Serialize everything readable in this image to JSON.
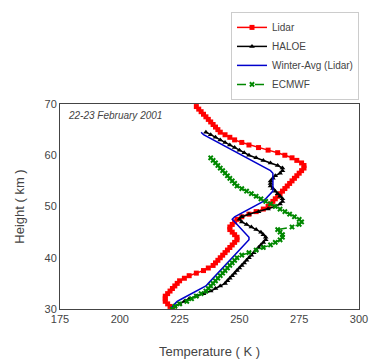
{
  "chart_data": {
    "type": "line",
    "title": "22-23 February 2001",
    "xlabel": "Temperature ( K )",
    "ylabel": "Height ( km )",
    "xlim": [
      175,
      300
    ],
    "ylim": [
      30,
      70
    ],
    "xticks": [
      175,
      200,
      225,
      250,
      275,
      300
    ],
    "yticks": [
      30,
      40,
      50,
      60,
      70
    ],
    "grid": false,
    "legend": "upper right",
    "series": [
      {
        "name": "Lidar",
        "color": "#ff0000",
        "marker": "square",
        "line_style": "solid",
        "x": [
          222,
          221,
          220,
          219,
          219,
          219,
          220,
          221,
          222,
          223,
          224,
          225,
          227,
          229,
          232,
          235,
          237,
          239,
          240,
          241,
          242,
          243,
          244,
          245,
          246,
          247,
          248,
          249,
          249,
          248,
          247,
          246,
          246,
          247,
          248,
          249,
          251,
          254,
          257,
          260,
          262,
          263,
          264,
          265,
          266,
          267,
          268,
          269,
          270,
          271,
          272,
          273,
          274,
          275,
          276,
          277,
          277,
          276,
          274,
          272,
          269,
          266,
          262,
          258,
          254,
          251,
          248,
          246,
          244,
          242,
          241,
          240,
          239,
          238,
          237,
          236,
          235,
          234,
          233,
          232
        ],
        "values": [
          30.0,
          30.5,
          31.0,
          31.5,
          32.0,
          32.5,
          33.0,
          33.5,
          34.0,
          34.5,
          35.0,
          35.5,
          36.0,
          36.5,
          37.0,
          37.5,
          38.0,
          38.5,
          39.0,
          39.5,
          40.0,
          40.5,
          41.0,
          41.5,
          42.0,
          42.5,
          43.0,
          43.5,
          44.0,
          44.5,
          45.0,
          45.5,
          46.0,
          46.5,
          47.0,
          47.5,
          48.0,
          48.5,
          49.0,
          49.5,
          50.0,
          50.5,
          51.0,
          51.5,
          52.0,
          52.5,
          53.0,
          53.5,
          54.0,
          54.5,
          55.0,
          55.5,
          56.0,
          56.5,
          57.0,
          57.5,
          58.0,
          58.5,
          59.0,
          59.5,
          60.0,
          60.5,
          61.0,
          61.5,
          62.0,
          62.5,
          63.0,
          63.5,
          64.0,
          64.5,
          65.0,
          65.5,
          66.0,
          66.5,
          67.0,
          67.5,
          68.0,
          68.5,
          69.0,
          69.5
        ]
      },
      {
        "name": "HALOE",
        "color": "#000000",
        "marker": "triangle-up",
        "line_style": "solid",
        "x": [
          222,
          223,
          225,
          227,
          229,
          232,
          235,
          238,
          240,
          242,
          244,
          245,
          246,
          247,
          248,
          249,
          250,
          251,
          252,
          253,
          254,
          255,
          256,
          257,
          258,
          259,
          260,
          261,
          261,
          260,
          259,
          257,
          255,
          253,
          251,
          250,
          251,
          254,
          258,
          262,
          265,
          267,
          268,
          268,
          267,
          266,
          265,
          264,
          263,
          263,
          263,
          264,
          265,
          267,
          268,
          268,
          266,
          263,
          260,
          257,
          254,
          252,
          250,
          248,
          246,
          244,
          242,
          240,
          238,
          236
        ],
        "values": [
          30.0,
          30.5,
          31.0,
          31.5,
          32.0,
          32.5,
          33.0,
          33.5,
          34.0,
          34.5,
          35.0,
          35.5,
          36.0,
          36.5,
          37.0,
          37.5,
          38.0,
          38.5,
          39.0,
          39.5,
          40.0,
          40.5,
          41.0,
          41.5,
          42.0,
          42.5,
          43.0,
          43.5,
          44.0,
          44.5,
          45.0,
          45.5,
          46.0,
          46.5,
          47.0,
          47.5,
          48.0,
          48.5,
          49.0,
          49.5,
          50.0,
          50.5,
          51.0,
          51.5,
          52.0,
          52.5,
          53.0,
          53.5,
          54.0,
          54.5,
          55.0,
          55.5,
          56.0,
          56.5,
          57.0,
          57.5,
          58.0,
          58.5,
          59.0,
          59.5,
          60.0,
          60.5,
          61.0,
          61.5,
          62.0,
          62.5,
          63.0,
          63.5,
          64.0,
          64.5
        ]
      },
      {
        "name": "Winter-Avg (Lidar)",
        "color": "#0000cc",
        "line_style": "solid",
        "x": [
          222,
          222,
          223,
          224,
          226,
          228,
          230,
          232,
          234,
          236,
          237,
          238,
          239,
          240,
          241,
          242,
          243,
          244,
          245,
          246,
          247,
          248,
          249,
          250,
          251,
          252,
          253,
          254,
          254,
          253,
          252,
          251,
          250,
          249,
          248,
          247,
          248,
          250,
          252,
          254,
          256,
          258,
          260,
          261,
          262,
          263,
          264,
          264,
          264,
          264,
          264,
          264,
          264,
          264,
          263,
          261,
          259,
          257,
          255,
          253,
          251,
          249,
          247,
          245,
          243,
          241,
          239,
          237,
          235,
          234
        ],
        "values": [
          30.0,
          30.5,
          31.0,
          31.5,
          32.0,
          32.5,
          33.0,
          33.5,
          34.0,
          34.5,
          35.0,
          35.5,
          36.0,
          36.5,
          37.0,
          37.5,
          38.0,
          38.5,
          39.0,
          39.5,
          40.0,
          40.5,
          41.0,
          41.5,
          42.0,
          42.5,
          43.0,
          43.5,
          44.0,
          44.5,
          45.0,
          45.5,
          46.0,
          46.5,
          47.0,
          47.5,
          48.0,
          48.5,
          49.0,
          49.5,
          50.0,
          50.5,
          51.0,
          51.5,
          52.0,
          52.5,
          53.0,
          53.5,
          54.0,
          54.5,
          55.0,
          55.5,
          56.0,
          56.5,
          57.0,
          57.5,
          58.0,
          58.5,
          59.0,
          59.5,
          60.0,
          60.5,
          61.0,
          61.5,
          62.0,
          62.5,
          63.0,
          63.5,
          64.0,
          64.5
        ]
      },
      {
        "name": "ECMWF",
        "color": "#008800",
        "marker": "x",
        "line_style": "dashed",
        "x": [
          222,
          223,
          225,
          228,
          230,
          232,
          234,
          236,
          237,
          238,
          239,
          240,
          241,
          242,
          243,
          244,
          245,
          246,
          247,
          248,
          249,
          251,
          254,
          257,
          260,
          263,
          265,
          267,
          268,
          268,
          267,
          266,
          272,
          275,
          276,
          275,
          273,
          271,
          269,
          267,
          265,
          263,
          261,
          259,
          257,
          255,
          253,
          251,
          249,
          248,
          247,
          246,
          245,
          244,
          243,
          242,
          241,
          240,
          239,
          238
        ],
        "values": [
          30.0,
          30.5,
          31.0,
          31.5,
          32.0,
          32.5,
          33.0,
          33.5,
          34.0,
          34.5,
          35.0,
          35.5,
          36.0,
          36.5,
          37.0,
          37.5,
          38.0,
          38.5,
          39.0,
          39.5,
          40.0,
          40.5,
          41.0,
          41.5,
          42.0,
          42.5,
          43.0,
          43.5,
          44.0,
          44.5,
          45.0,
          45.5,
          46.0,
          46.5,
          47.0,
          47.5,
          48.0,
          48.5,
          49.0,
          49.5,
          50.0,
          50.5,
          51.0,
          51.5,
          52.0,
          52.5,
          53.0,
          53.5,
          54.0,
          54.5,
          55.0,
          55.5,
          56.0,
          56.5,
          57.0,
          57.5,
          58.0,
          58.5,
          59.0,
          59.5
        ]
      }
    ]
  }
}
